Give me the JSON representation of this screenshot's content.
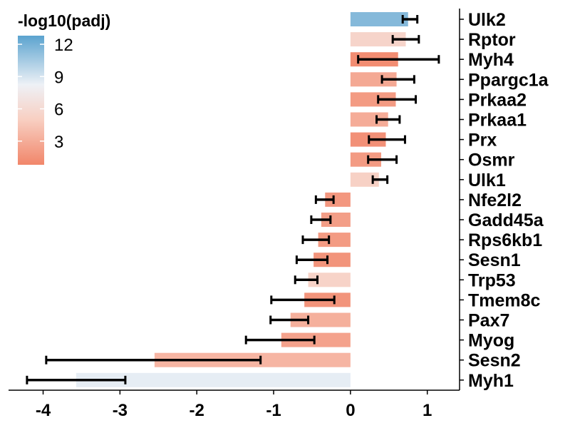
{
  "chart_data": {
    "type": "bar",
    "orientation": "horizontal",
    "categories": [
      "Ulk2",
      "Rptor",
      "Myh4",
      "Ppargc1a",
      "Prkaa2",
      "Prkaa1",
      "Prx",
      "Osmr",
      "Ulk1",
      "Nfe2l2",
      "Gadd45a",
      "Rps6kb1",
      "Sesn1",
      "Trp53",
      "Tmem8c",
      "Pax7",
      "Myog",
      "Sesn2",
      "Myh1"
    ],
    "values": [
      0.75,
      0.72,
      0.62,
      0.6,
      0.59,
      0.49,
      0.46,
      0.4,
      0.37,
      -0.33,
      -0.38,
      -0.42,
      -0.48,
      -0.55,
      -0.6,
      -0.78,
      -0.9,
      -2.55,
      -3.57
    ],
    "error_low": [
      0.68,
      0.55,
      0.1,
      0.41,
      0.36,
      0.34,
      0.24,
      0.23,
      0.29,
      -0.45,
      -0.51,
      -0.62,
      -0.7,
      -0.72,
      -1.03,
      -1.04,
      -1.36,
      -3.96,
      -4.21
    ],
    "error_high": [
      0.87,
      0.89,
      1.15,
      0.83,
      0.85,
      0.64,
      0.71,
      0.6,
      0.48,
      -0.22,
      -0.26,
      -0.28,
      -0.3,
      -0.43,
      -0.21,
      -0.55,
      -0.47,
      -1.17,
      -2.93
    ],
    "color_values": [
      11.5,
      5.5,
      1.2,
      2.8,
      2.0,
      3.0,
      1.4,
      2.0,
      5.2,
      1.8,
      2.2,
      2.0,
      1.6,
      5.4,
      1.6,
      3.2,
      2.4,
      3.5,
      8.5
    ],
    "colorbar": {
      "title": "-log10(padj)",
      "range": [
        0.8,
        12.8
      ],
      "ticks": [
        3,
        6,
        9,
        12
      ],
      "colors": {
        "low": "#F1866A",
        "mid_low": "#F8CFC2",
        "mid": "#EEF1F6",
        "high": "#5BA3CF"
      }
    },
    "xlim": [
      -4.45,
      1.42
    ],
    "xticks": [
      -4,
      -3,
      -2,
      -1,
      0,
      1
    ],
    "xlabel": "",
    "ylabel": "",
    "title": ""
  }
}
